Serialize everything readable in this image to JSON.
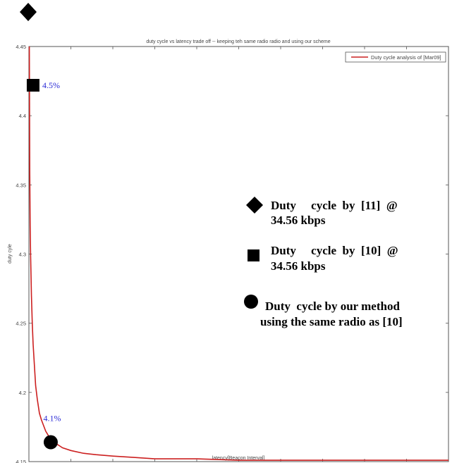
{
  "chart_data": {
    "type": "line",
    "title": "duty cycle vs latency trade off -- keeping teh same radio radio and using our scheme",
    "xlabel": "latency[Beacon Interval]",
    "ylabel": "duty cyle",
    "xlim": [
      0,
      1000
    ],
    "ylim": [
      4.15,
      4.45
    ],
    "x_ticks": [
      "0",
      "100",
      "200",
      "300",
      "400",
      "500",
      "600",
      "700",
      "800",
      "900",
      "1000"
    ],
    "y_ticks": [
      "4.15",
      "4.2",
      "4.25",
      "4.3",
      "4.35",
      "4.4",
      "4.45"
    ],
    "grid": false,
    "legend_position": "top-right",
    "line_color": "#cc2020",
    "series": [
      {
        "name": "Duty cycle analysis of [Mar09]",
        "x": [
          1,
          2,
          3,
          4,
          5,
          6,
          8,
          10,
          13,
          16,
          20,
          25,
          30,
          40,
          50,
          60,
          80,
          100,
          130,
          160,
          200,
          250,
          300,
          400,
          500,
          600,
          700,
          800,
          900,
          1000
        ],
        "y": [
          4.45,
          4.36,
          4.32,
          4.3,
          4.285,
          4.27,
          4.25,
          4.235,
          4.22,
          4.205,
          4.195,
          4.185,
          4.18,
          4.172,
          4.167,
          4.164,
          4.16,
          4.158,
          4.156,
          4.155,
          4.154,
          4.153,
          4.152,
          4.152,
          4.151,
          4.151,
          4.151,
          4.151,
          4.151,
          4.151
        ]
      }
    ],
    "markers": [
      {
        "shape": "square",
        "x": 10,
        "y": 4.422,
        "label": "4.5%"
      },
      {
        "shape": "circle",
        "x": 52,
        "y": 4.164,
        "label": "4.1%"
      }
    ],
    "annotations": [
      {
        "shape": "diamond",
        "lines": [
          "Duty     cycle  by  [11]  @",
          "34.56 kbps"
        ]
      },
      {
        "shape": "square",
        "lines": [
          "Duty     cycle  by  [10]  @",
          "34.56 kbps"
        ]
      },
      {
        "shape": "circle",
        "lines": [
          "Duty  cycle by our method",
          "using the same radio as [10]"
        ]
      }
    ],
    "marker_color": "#000000",
    "label_color": "#2a2ad6"
  }
}
